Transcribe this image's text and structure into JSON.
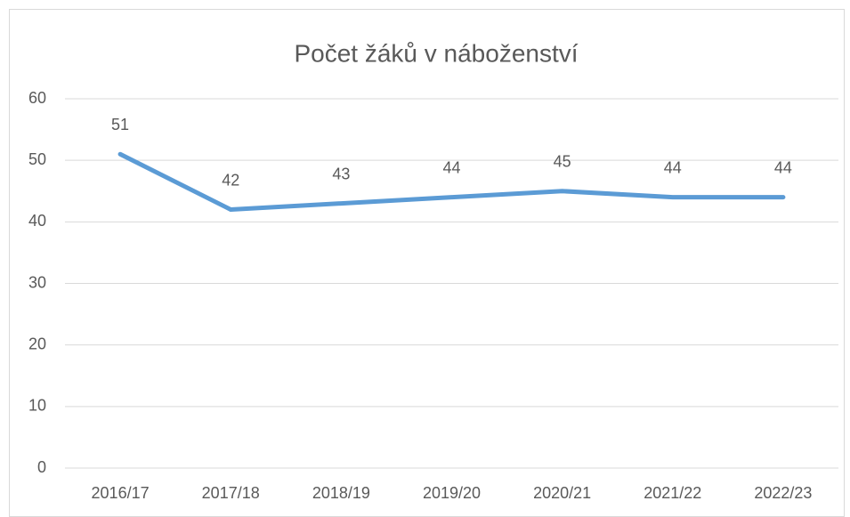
{
  "chart_data": {
    "type": "line",
    "title": "Počet žáků v náboženství",
    "categories": [
      "2016/17",
      "2017/18",
      "2018/19",
      "2019/20",
      "2020/21",
      "2021/22",
      "2022/23"
    ],
    "series": [
      {
        "name": "Počet žáků",
        "color": "#5b9bd5",
        "values": [
          51,
          42,
          43,
          44,
          45,
          44,
          44
        ]
      }
    ],
    "ylim": [
      0,
      60
    ],
    "yticks": [
      0,
      10,
      20,
      30,
      40,
      50,
      60
    ],
    "grid": true
  }
}
